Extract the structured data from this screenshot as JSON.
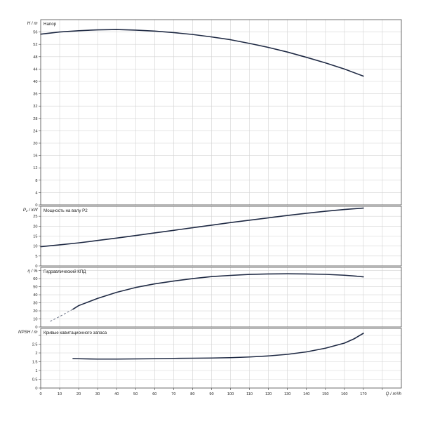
{
  "chart_data": {
    "type": "line",
    "x_axis": {
      "label": "Q / m³/h",
      "ticks": [
        0,
        10,
        20,
        30,
        40,
        50,
        60,
        70,
        80,
        90,
        100,
        110,
        120,
        130,
        140,
        150,
        160,
        170,
        180
      ],
      "tick_labels": [
        "0",
        "10",
        "20",
        "30",
        "40",
        "50",
        "60",
        "70",
        "80",
        "90",
        "100",
        "110",
        "120",
        "130",
        "140",
        "150",
        "160",
        "170"
      ],
      "range": [
        0,
        190
      ]
    },
    "panels": [
      {
        "id": "head",
        "title": "Напор",
        "ylabel": "H / m",
        "ylim": [
          0,
          60
        ],
        "ticks": [
          0,
          4,
          8,
          12,
          16,
          20,
          24,
          28,
          32,
          36,
          40,
          44,
          48,
          52,
          56
        ],
        "tick_labels": [
          "0",
          "4",
          "8",
          "12",
          "16",
          "20",
          "24",
          "28",
          "32",
          "36",
          "40",
          "44",
          "48",
          "52",
          "56"
        ],
        "series": [
          {
            "x": [
              0,
              10,
              20,
              30,
              40,
              50,
              60,
              70,
              80,
              90,
              100,
              110,
              120,
              130,
              140,
              150,
              160,
              170
            ],
            "y": [
              55.3,
              56.0,
              56.4,
              56.7,
              56.8,
              56.6,
              56.3,
              55.8,
              55.2,
              54.4,
              53.5,
              52.3,
              51.0,
              49.5,
              47.8,
              46.0,
              44.0,
              41.7
            ]
          }
        ]
      },
      {
        "id": "power",
        "title": "Мощность на валу P2",
        "ylabel": "P₂ / kW",
        "ylim": [
          0,
          30
        ],
        "ticks": [
          0,
          5,
          10,
          15,
          20,
          25,
          30
        ],
        "tick_labels": [
          "0",
          "5",
          "10",
          "15",
          "20",
          "25"
        ],
        "series": [
          {
            "x": [
              0,
              10,
              20,
              30,
              40,
              50,
              60,
              70,
              80,
              90,
              100,
              110,
              120,
              130,
              140,
              150,
              160,
              170
            ],
            "y": [
              9.7,
              10.6,
              11.6,
              12.8,
              14.0,
              15.3,
              16.6,
              17.9,
              19.2,
              20.5,
              21.8,
              23.0,
              24.2,
              25.4,
              26.5,
              27.5,
              28.4,
              29.1
            ]
          }
        ]
      },
      {
        "id": "efficiency",
        "title": "Гидравлический КПД",
        "ylabel": "η / %",
        "ylim": [
          0,
          74
        ],
        "ticks": [
          0,
          10,
          20,
          30,
          40,
          50,
          60,
          70
        ],
        "tick_labels": [
          "0",
          "10",
          "20",
          "30",
          "40",
          "50",
          "60"
        ],
        "series": [
          {
            "x": [
              17,
              20,
              30,
              40,
              50,
              60,
              70,
              80,
              90,
              100,
              110,
              120,
              130,
              140,
              150,
              160,
              165,
              170
            ],
            "y": [
              22.0,
              26.5,
              35.5,
              43.0,
              49.0,
              53.5,
              57.0,
              60.0,
              62.5,
              64.0,
              65.2,
              65.8,
              66.0,
              65.8,
              65.3,
              64.2,
              63.3,
              62.2
            ]
          },
          {
            "style": "dashed",
            "x": [
              5,
              10,
              17
            ],
            "y": [
              7.0,
              13.0,
              22.0
            ]
          }
        ]
      },
      {
        "id": "npsh",
        "title": "Кривые кавитационного запаса",
        "ylabel": "NPSH / m",
        "ylim": [
          0,
          3.4
        ],
        "ticks": [
          0,
          0.5,
          1,
          1.5,
          2,
          2.5,
          3
        ],
        "tick_labels": [
          "0",
          "0.5",
          "1",
          "1.5",
          "2",
          "2.5"
        ],
        "series": [
          {
            "x": [
              17,
              20,
              30,
              40,
              50,
              60,
              70,
              80,
              90,
              100,
              110,
              120,
              130,
              140,
              150,
              160,
              165,
              170
            ],
            "y": [
              1.68,
              1.67,
              1.65,
              1.65,
              1.66,
              1.67,
              1.69,
              1.7,
              1.71,
              1.73,
              1.77,
              1.83,
              1.92,
              2.06,
              2.27,
              2.56,
              2.8,
              3.12
            ]
          }
        ]
      }
    ]
  }
}
